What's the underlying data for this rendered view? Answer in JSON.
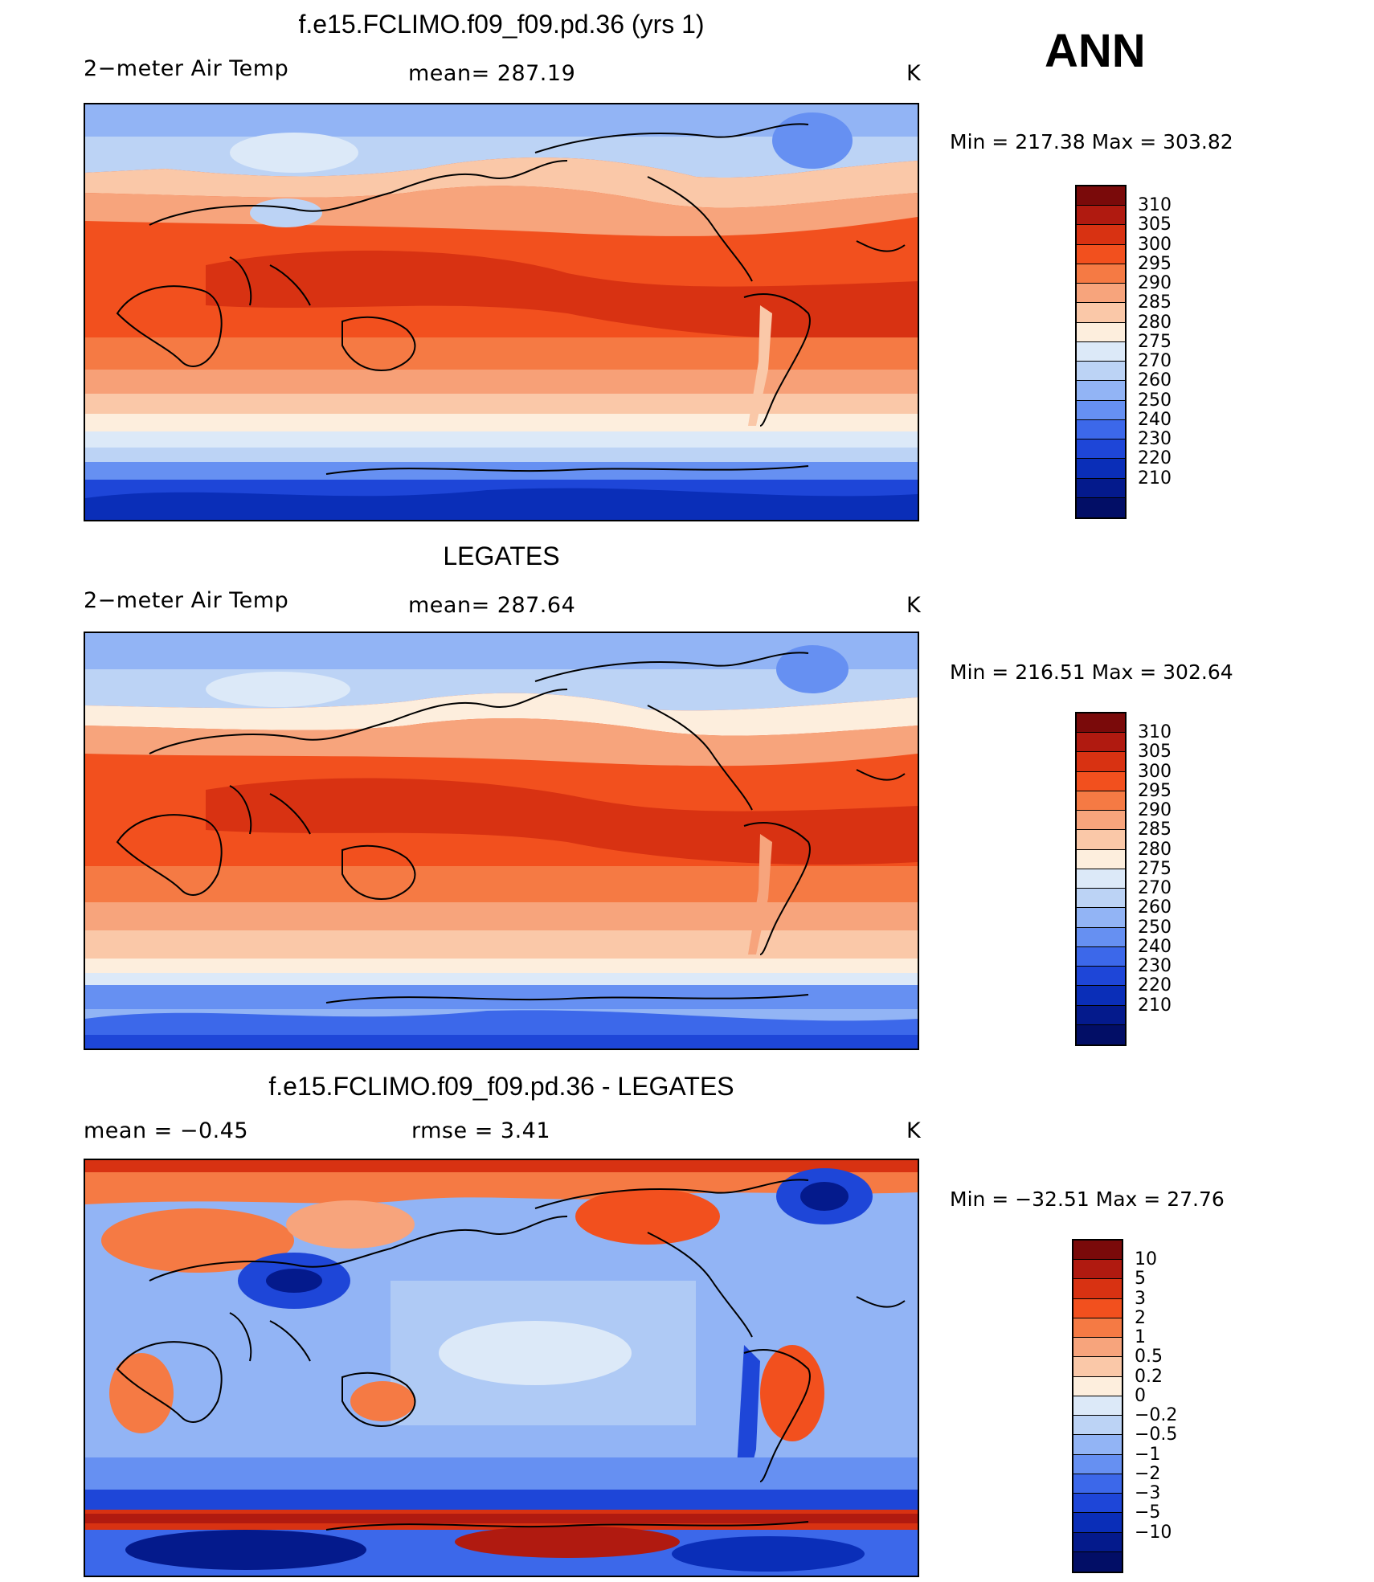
{
  "season": "ANN",
  "panels": [
    {
      "title": "f.e15.FCLIMO.f09_f09.pd.36 (yrs 1)",
      "left": "2−meter Air Temp",
      "middle": "mean=  287.19",
      "right": "K",
      "minmax": "Min  =  217.38  Max  =  303.82",
      "scale": "abs"
    },
    {
      "title": "LEGATES",
      "left": "2−meter Air Temp",
      "middle": "mean=  287.64",
      "right": "K",
      "minmax": "Min  =  216.51  Max  =  302.64",
      "scale": "abs"
    },
    {
      "title": "f.e15.FCLIMO.f09_f09.pd.36 - LEGATES",
      "left": "mean  =    −0.45",
      "middle": "rmse  =     3.41",
      "right": "K",
      "minmax": "Min  =  −32.51  Max  =    27.76",
      "scale": "diff"
    }
  ],
  "colorbars": {
    "abs": {
      "colors": [
        "#7a0a0a",
        "#b01a10",
        "#d83212",
        "#f2501e",
        "#f57a44",
        "#f7a47c",
        "#fac8a8",
        "#fdeedd",
        "#dce9f8",
        "#bcd3f5",
        "#92b4f5",
        "#6690f2",
        "#3c68ea",
        "#1e46d8",
        "#0a2eb8",
        "#041a8c",
        "#020e66"
      ],
      "labels": [
        "310",
        "305",
        "300",
        "295",
        "290",
        "285",
        "280",
        "275",
        "270",
        "260",
        "250",
        "240",
        "230",
        "220",
        "210"
      ]
    },
    "diff": {
      "colors": [
        "#7a0a0a",
        "#b01a10",
        "#d83212",
        "#f2501e",
        "#f57a44",
        "#f7a47c",
        "#fac8a8",
        "#fdeedd",
        "#dce9f8",
        "#bcd3f5",
        "#92b4f5",
        "#6690f2",
        "#3c68ea",
        "#1e46d8",
        "#0a2eb8",
        "#041a8c",
        "#020e66"
      ],
      "labels": [
        "10",
        "5",
        "3",
        "2",
        "1",
        "0.5",
        "0.2",
        "0",
        "−0.2",
        "−0.5",
        "−1",
        "−2",
        "−3",
        "−5",
        "−10"
      ]
    }
  }
}
